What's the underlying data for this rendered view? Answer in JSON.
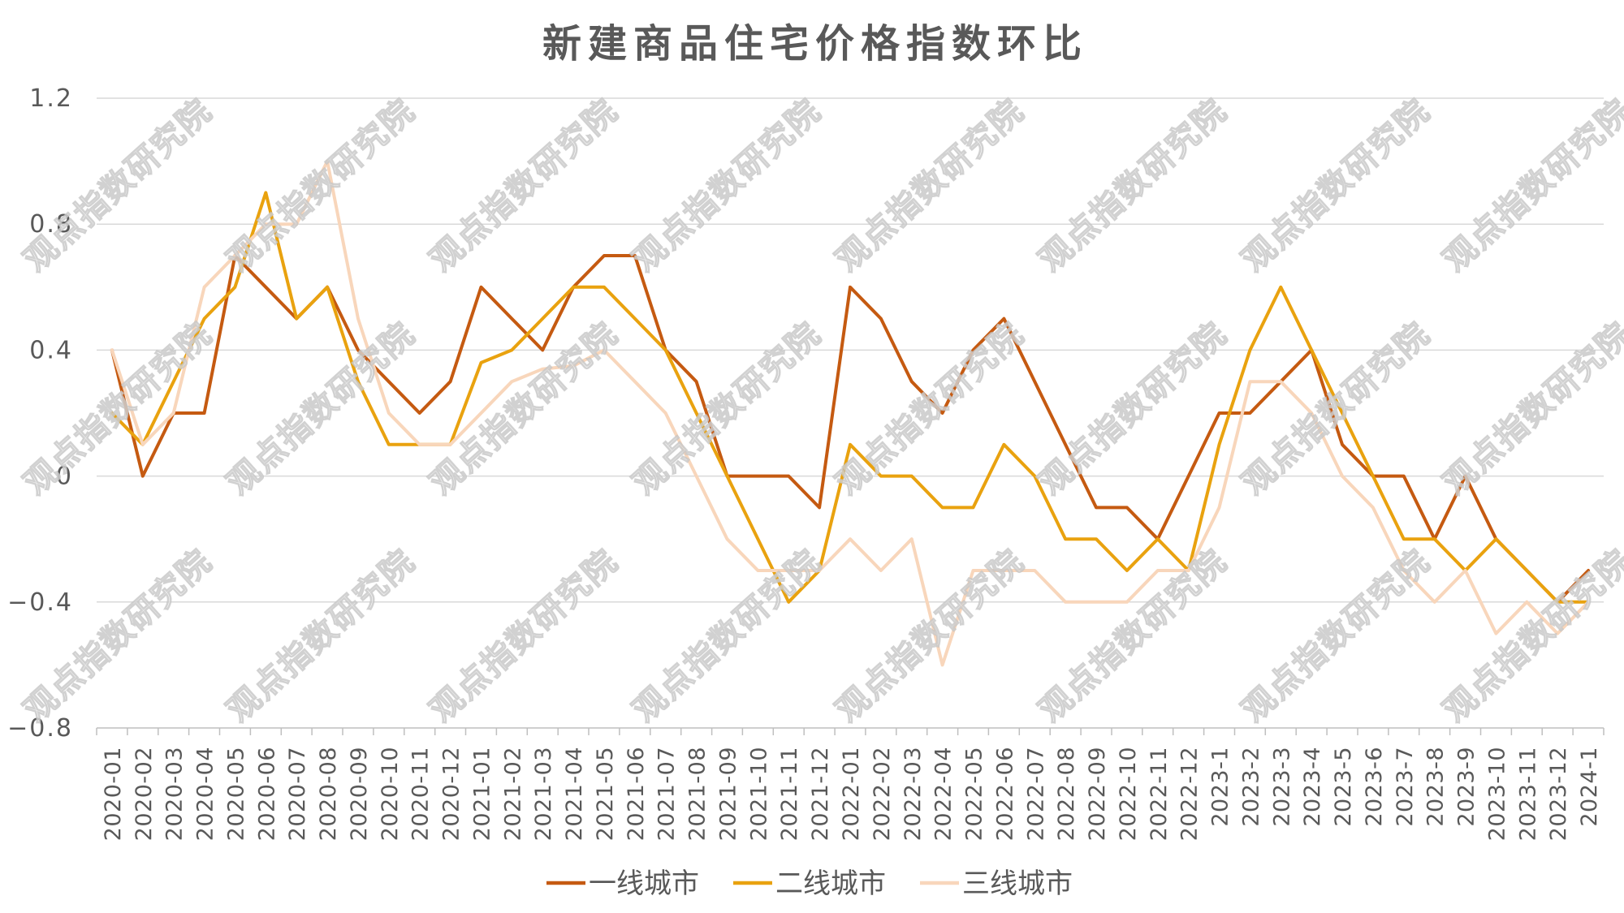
{
  "chart_data": {
    "type": "line",
    "title": "新建商品住宅价格指数环比",
    "categories": [
      "2020-01",
      "2020-02",
      "2020-03",
      "2020-04",
      "2020-05",
      "2020-06",
      "2020-07",
      "2020-08",
      "2020-09",
      "2020-10",
      "2020-11",
      "2020-12",
      "2021-01",
      "2021-02",
      "2021-03",
      "2021-04",
      "2021-05",
      "2021-06",
      "2021-07",
      "2021-08",
      "2021-09",
      "2021-10",
      "2021-11",
      "2021-12",
      "2022-01",
      "2022-02",
      "2022-03",
      "2022-04",
      "2022-05",
      "2022-06",
      "2022-07",
      "2022-08",
      "2022-09",
      "2022-10",
      "2022-11",
      "2022-12",
      "2023-1",
      "2023-2",
      "2023-3",
      "2023-4",
      "2023-5",
      "2023-6",
      "2023-7",
      "2023-8",
      "2023-9",
      "2023-10",
      "2023-11",
      "2023-12",
      "2024-1"
    ],
    "series": [
      {
        "name": "一线城市",
        "color": "#C55A11",
        "values": [
          0.4,
          0,
          0.2,
          0.2,
          0.7,
          0.6,
          0.5,
          0.6,
          0.4,
          0.3,
          0.2,
          0.3,
          0.6,
          0.5,
          0.4,
          0.6,
          0.7,
          0.7,
          0.4,
          0.3,
          0,
          0,
          0,
          -0.1,
          0.6,
          0.5,
          0.3,
          0.2,
          0.4,
          0.5,
          0.3,
          0.1,
          -0.1,
          -0.1,
          -0.2,
          0,
          0.2,
          0.2,
          0.3,
          0.4,
          0.1,
          0,
          0,
          -0.2,
          0,
          -0.2,
          -0.3,
          -0.4,
          -0.3
        ]
      },
      {
        "name": "二线城市",
        "color": "#E9A20F",
        "values": [
          0.2,
          0.1,
          0.3,
          0.5,
          0.6,
          0.9,
          0.5,
          0.6,
          0.3,
          0.1,
          0.1,
          0.1,
          0.36,
          0.4,
          0.5,
          0.6,
          0.6,
          0.5,
          0.4,
          0.2,
          0,
          -0.2,
          -0.4,
          -0.3,
          0.1,
          0,
          0,
          -0.1,
          -0.1,
          0.1,
          0,
          -0.2,
          -0.2,
          -0.3,
          -0.2,
          -0.3,
          0.1,
          0.4,
          0.6,
          0.4,
          0.2,
          0,
          -0.2,
          -0.2,
          -0.3,
          -0.2,
          -0.3,
          -0.4,
          -0.4
        ]
      },
      {
        "name": "三线城市",
        "color": "#F8D6BB",
        "values": [
          0.4,
          0.1,
          0.2,
          0.6,
          0.7,
          0.8,
          0.8,
          1.0,
          0.5,
          0.2,
          0.1,
          0.1,
          0.2,
          0.3,
          0.34,
          0.35,
          0.4,
          0.3,
          0.2,
          0,
          -0.2,
          -0.3,
          -0.3,
          -0.3,
          -0.2,
          -0.3,
          -0.2,
          -0.6,
          -0.3,
          -0.3,
          -0.3,
          -0.4,
          -0.4,
          -0.4,
          -0.3,
          -0.3,
          -0.1,
          0.3,
          0.3,
          0.2,
          0,
          -0.1,
          -0.3,
          -0.4,
          -0.3,
          -0.5,
          -0.4,
          -0.5,
          -0.4
        ]
      }
    ],
    "ylim": [
      -0.8,
      1.2
    ],
    "yticks": [
      1.2,
      0.8,
      0.4,
      0,
      -0.4,
      -0.8
    ],
    "ytick_labels": [
      "1.2",
      "0.8",
      "0.4",
      "0",
      "−0.4",
      "−0.8"
    ],
    "grid": true,
    "legend": "bottom"
  },
  "watermark": {
    "text": "观点指数研究院"
  }
}
